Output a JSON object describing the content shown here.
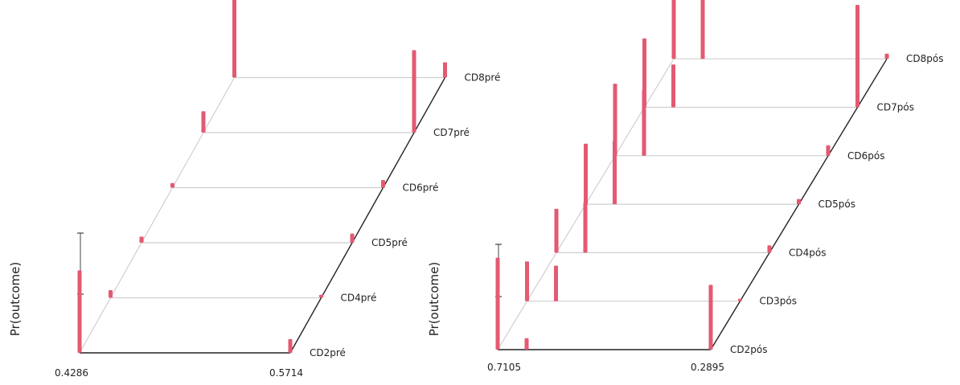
{
  "chart_data": [
    {
      "type": "bar",
      "ylabel": "Pr(outcome)",
      "x_tick_labels": [
        "0.4286",
        "0.5714"
      ],
      "categories": [
        "CD2pré",
        "CD4pré",
        "CD5pré",
        "CD6pré",
        "CD7pré",
        "CD8pré"
      ],
      "series": [
        {
          "values": [
            0.54,
            0.05,
            0.04,
            0.03,
            0.14,
            0.68
          ]
        },
        {
          "values": [
            0.09,
            0.02,
            0.06,
            0.05,
            0.54,
            0.1
          ]
        }
      ]
    },
    {
      "type": "bar",
      "ylabel": "Pr(outcome)",
      "x_tick_labels": [
        "0.7105",
        "0.2895"
      ],
      "categories": [
        "CD2pós",
        "CD3pós",
        "CD4pós",
        "CD5pós",
        "CD6pós",
        "CD7pós",
        "CD8pós"
      ],
      "series": [
        {
          "values": [
            0.88,
            0.38,
            0.42,
            0.58,
            0.69,
            0.66,
            0.64
          ]
        },
        {
          "values": [
            0.11,
            0.34,
            0.48,
            0.61,
            0.63,
            0.41,
            0.6
          ]
        },
        {
          "values": [
            0.62,
            0.02,
            0.07,
            0.05,
            0.1,
            0.98,
            0.05
          ]
        }
      ]
    }
  ],
  "colors": {
    "bar": "#e35a72",
    "axis": "#222222",
    "grid": "#cfcfcf"
  }
}
